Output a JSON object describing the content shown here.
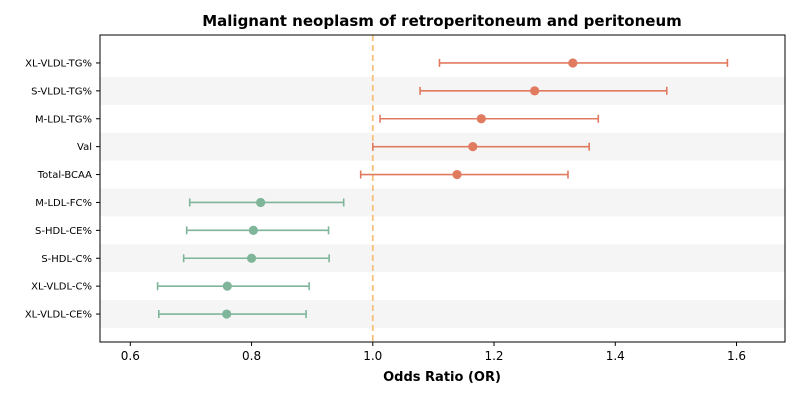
{
  "chart_data": {
    "type": "forest",
    "title": "Malignant neoplasm of retroperitoneum and peritoneum",
    "xlabel": "Odds Ratio (OR)",
    "ylabel": "",
    "xlim": [
      0.55,
      1.68
    ],
    "xticks": [
      0.6,
      0.8,
      1.0,
      1.2,
      1.4,
      1.6
    ],
    "xtick_labels": [
      "0.6",
      "0.8",
      "1.0",
      "1.2",
      "1.4",
      "1.6"
    ],
    "reference_line": 1.0,
    "alternating_row_shading": true,
    "colors": {
      "positive": "#e07b5f",
      "negative": "#7fb69a",
      "reference_line": "#f5c07a",
      "row_shade": "#f5f5f5"
    },
    "items": [
      {
        "label": "XL-VLDL-TG%",
        "or": 1.33,
        "lower": 1.11,
        "upper": 1.585,
        "direction": "positive"
      },
      {
        "label": "S-VLDL-TG%",
        "or": 1.267,
        "lower": 1.078,
        "upper": 1.485,
        "direction": "positive"
      },
      {
        "label": "M-LDL-TG%",
        "or": 1.179,
        "lower": 1.012,
        "upper": 1.372,
        "direction": "positive"
      },
      {
        "label": "Val",
        "or": 1.165,
        "lower": 1.0,
        "upper": 1.357,
        "direction": "positive"
      },
      {
        "label": "Total-BCAA",
        "or": 1.139,
        "lower": 0.98,
        "upper": 1.322,
        "direction": "positive"
      },
      {
        "label": "M-LDL-FC%",
        "or": 0.815,
        "lower": 0.698,
        "upper": 0.952,
        "direction": "negative"
      },
      {
        "label": "S-HDL-CE%",
        "or": 0.803,
        "lower": 0.693,
        "upper": 0.927,
        "direction": "negative"
      },
      {
        "label": "S-HDL-C%",
        "or": 0.8,
        "lower": 0.688,
        "upper": 0.928,
        "direction": "negative"
      },
      {
        "label": "XL-VLDL-C%",
        "or": 0.76,
        "lower": 0.645,
        "upper": 0.895,
        "direction": "negative"
      },
      {
        "label": "XL-VLDL-CE%",
        "or": 0.759,
        "lower": 0.647,
        "upper": 0.89,
        "direction": "negative"
      }
    ]
  }
}
